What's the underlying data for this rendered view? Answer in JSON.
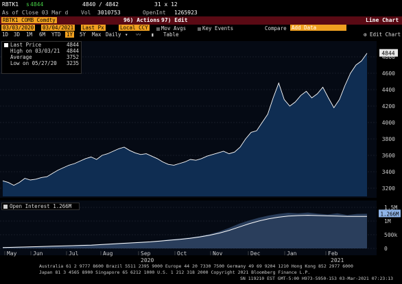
{
  "header": {
    "ticker": "RBTK1",
    "last_prefix": "s",
    "last_price": "4844",
    "bid_ask": "4840 / 4842",
    "size": "31 x 12",
    "as_of": "As of Close 03 Mar d",
    "vol_label": "Vol",
    "vol_value": "3010753",
    "openint_label": "OpenInt",
    "openint_value": "1265923"
  },
  "titlebar": {
    "security": "RBTK1 COMB Comdty",
    "actions": "96) Actions",
    "edit": "97) Edit",
    "chart_name": "Line Chart"
  },
  "toolbar": {
    "start_date": "03/03/2020",
    "end_date": "03/04/2021",
    "field": "Last Px",
    "currency": "Local CCY",
    "mov_avgs": "Mov Avgs",
    "key_events": "Key Events",
    "compare": "Compare",
    "add_data": "Add Data"
  },
  "periods": {
    "items": [
      "1D",
      "3D",
      "1M",
      "6M",
      "YTD",
      "1Y",
      "5Y",
      "Max"
    ],
    "selected": "1Y",
    "frequency": "Daily",
    "table": "Table",
    "edit_chart": "Edit Chart"
  },
  "legend": {
    "last_price_label": "Last Price",
    "last_price_value": "4844",
    "high_label": "High on 03/03/21",
    "high_value": "4844",
    "average_label": "Average",
    "average_value": "3752",
    "low_label": "Low on 05/27/20",
    "low_value": "3235"
  },
  "oi_legend": {
    "label": "Open Interest 1.266M"
  },
  "chart_data": [
    {
      "type": "area",
      "series": [
        {
          "name": "Last Price",
          "values": [
            3290,
            3270,
            3235,
            3270,
            3320,
            3300,
            3310,
            3330,
            3340,
            3380,
            3420,
            3450,
            3480,
            3500,
            3530,
            3560,
            3580,
            3550,
            3600,
            3620,
            3650,
            3680,
            3700,
            3660,
            3630,
            3610,
            3620,
            3590,
            3560,
            3520,
            3490,
            3480,
            3500,
            3520,
            3550,
            3540,
            3560,
            3590,
            3610,
            3630,
            3650,
            3620,
            3640,
            3700,
            3800,
            3880,
            3900,
            4000,
            4100,
            4300,
            4480,
            4280,
            4200,
            4250,
            4330,
            4380,
            4300,
            4350,
            4430,
            4300,
            4180,
            4280,
            4450,
            4600,
            4700,
            4750,
            4844
          ]
        }
      ],
      "x_labels": [
        "May",
        "Jun",
        "Jul",
        "Aug",
        "Sep",
        "Oct",
        "Nov",
        "Dec",
        "Jan",
        "Feb"
      ],
      "year_labels": [
        "2020",
        "2021"
      ],
      "y_ticks": [
        3200,
        3400,
        3600,
        3800,
        4000,
        4200,
        4400,
        4600,
        4800
      ],
      "ylim": [
        3100,
        4950
      ],
      "last_label": "4844",
      "colors": {
        "fill": "#0f2d52",
        "line": "#ffffff",
        "last_bg": "#e8e8e8"
      }
    },
    {
      "type": "area",
      "series": [
        {
          "name": "Open Interest",
          "values": [
            0.04,
            0.05,
            0.06,
            0.07,
            0.08,
            0.09,
            0.1,
            0.11,
            0.13,
            0.14,
            0.16,
            0.18,
            0.2,
            0.22,
            0.24,
            0.26,
            0.29,
            0.33,
            0.36,
            0.4,
            0.45,
            0.52,
            0.62,
            0.75,
            0.9,
            1.02,
            1.12,
            1.2,
            1.26,
            1.3,
            1.28,
            1.31,
            1.27,
            1.24,
            1.28,
            1.22,
            1.26,
            1.266
          ]
        },
        {
          "name": "Average",
          "values": [
            0.03,
            0.04,
            0.05,
            0.06,
            0.07,
            0.08,
            0.09,
            0.1,
            0.11,
            0.12,
            0.14,
            0.16,
            0.18,
            0.2,
            0.22,
            0.24,
            0.27,
            0.3,
            0.33,
            0.37,
            0.42,
            0.48,
            0.56,
            0.66,
            0.78,
            0.9,
            1.0,
            1.08,
            1.14,
            1.18,
            1.2,
            1.21,
            1.2,
            1.19,
            1.18,
            1.17,
            1.17,
            1.17
          ]
        }
      ],
      "y_ticks": [
        0,
        0.5,
        1,
        1.5
      ],
      "y_tick_labels": [
        "0",
        "500k",
        "1M",
        "1.5M"
      ],
      "ylim": [
        -0.15,
        1.6
      ],
      "last_label": "1.266M",
      "colors": {
        "fill": "#2a3e5c",
        "line": "#ffffff",
        "last_bg": "#8fb4e8"
      }
    }
  ],
  "footer": {
    "line1": "Australia 61 2 9777 8600 Brazil 5511 2395 9000 Europe 44 20 7330 7500 Germany 49 69 9204 1210 Hong Kong 852 2977 6000",
    "line2": "Japan 81 3 4565 8900        Singapore 65 6212 1000        U.S. 1 212 318 2000        Copyright 2021 Bloomberg Finance L.P.",
    "line3": "SN 119210 EST  GMT-5:00 H973-5950-153 03-Mar-2021 07:23:13"
  }
}
